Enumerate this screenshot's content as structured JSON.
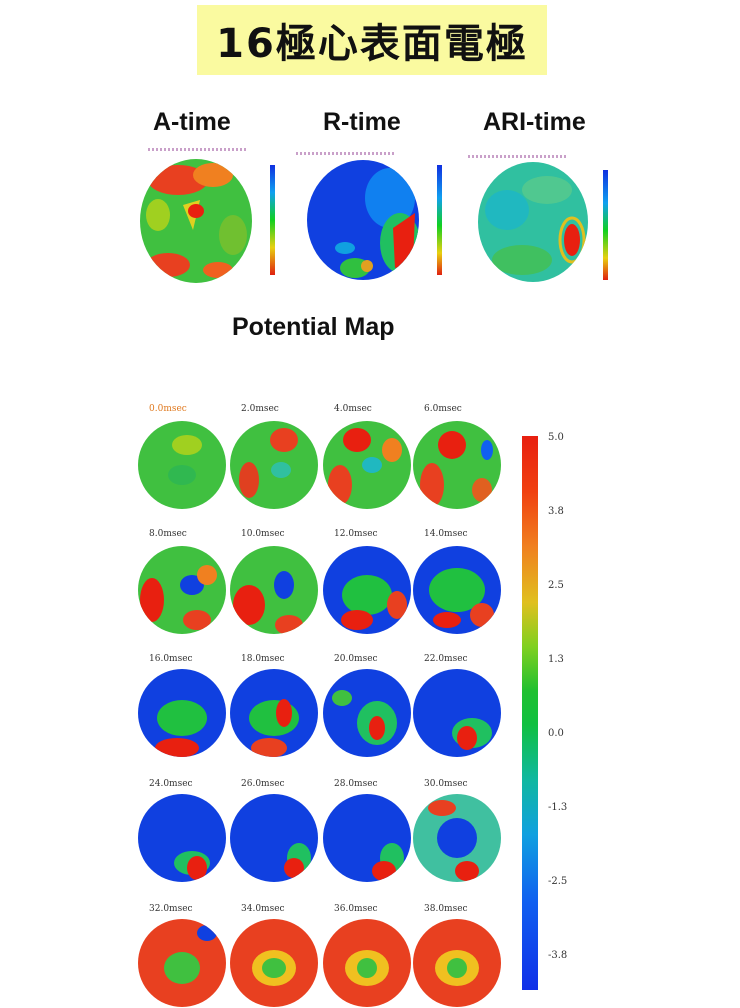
{
  "title": "16極心表面電極",
  "top_maps": [
    {
      "label": "A-time"
    },
    {
      "label": "R-time"
    },
    {
      "label": "ARI-time"
    }
  ],
  "potential_map": {
    "label": "Potential Map",
    "frames": [
      "0.0msec",
      "2.0msec",
      "4.0msec",
      "6.0msec",
      "8.0msec",
      "10.0msec",
      "12.0msec",
      "14.0msec",
      "16.0msec",
      "18.0msec",
      "20.0msec",
      "22.0msec",
      "24.0msec",
      "26.0msec",
      "28.0msec",
      "30.0msec",
      "32.0msec",
      "34.0msec",
      "36.0msec",
      "38.0msec"
    ],
    "colorbar_ticks": [
      "5.0",
      "3.8",
      "2.5",
      "1.3",
      "0.0",
      "-1.3",
      "-2.5",
      "-3.8"
    ]
  },
  "colors": {
    "title_bg": "#fafaa0",
    "red": "#e82010",
    "green": "#30c030",
    "blue": "#1030e0"
  }
}
